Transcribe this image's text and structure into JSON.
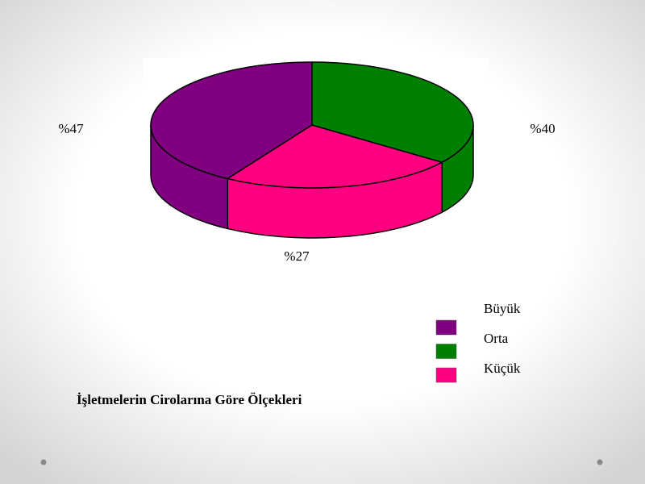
{
  "chart_data": {
    "type": "pie",
    "title": "İşletmelerin Cirolarına Göre Ölçekleri",
    "categories": [
      "Büyük",
      "Orta",
      "Küçük"
    ],
    "values": [
      47,
      40,
      27
    ],
    "value_labels": [
      "%47",
      "%40",
      "%27"
    ],
    "colors": [
      "#800080",
      "#008000",
      "#ff0080"
    ],
    "legend": "right"
  }
}
